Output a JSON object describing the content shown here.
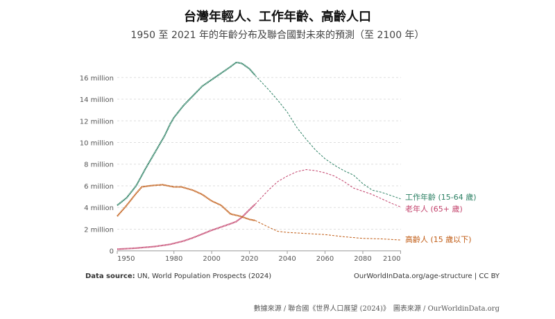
{
  "chart_data": {
    "type": "line",
    "title": "台灣年輕人、工作年齡、高齡人口",
    "subtitle": "1950 至 2021 年的年齡分布及聯合國對未來的預測（至 2100 年）",
    "xlim": [
      1950,
      2100
    ],
    "ylim": [
      0,
      17500000
    ],
    "x_ticks": [
      "1950",
      "1980",
      "2000",
      "2020",
      "2040",
      "2060",
      "2080",
      "2100"
    ],
    "y_ticks": [
      "0",
      "2 million",
      "4 million",
      "6 million",
      "8 million",
      "10 million",
      "12 million",
      "14 million",
      "16 million"
    ],
    "grid": true,
    "projection_from": 2023,
    "series": [
      {
        "name": "工作年齡 (15-64 歲)",
        "color": "#2a7f62",
        "x": [
          1950,
          1955,
          1960,
          1965,
          1970,
          1975,
          1978,
          1980,
          1985,
          1990,
          1995,
          2000,
          2005,
          2010,
          2013,
          2016,
          2020,
          2023,
          2030,
          2035,
          2040,
          2045,
          2050,
          2055,
          2060,
          2065,
          2070,
          2075,
          2080,
          2085,
          2090,
          2095,
          2100
        ],
        "y": [
          4.2,
          4.9,
          6.0,
          7.6,
          9.1,
          10.6,
          11.7,
          12.3,
          13.4,
          14.3,
          15.2,
          15.8,
          16.4,
          17.0,
          17.4,
          17.3,
          16.8,
          16.2,
          14.9,
          13.9,
          12.8,
          11.4,
          10.3,
          9.3,
          8.5,
          7.9,
          7.4,
          7.0,
          6.2,
          5.6,
          5.4,
          5.1,
          4.8
        ]
      },
      {
        "name": "老年人 (65+ 歲)",
        "color": "#c2406a",
        "x": [
          1950,
          1960,
          1970,
          1978,
          1985,
          1990,
          2000,
          2010,
          2013,
          2016,
          2020,
          2023,
          2030,
          2035,
          2040,
          2045,
          2050,
          2055,
          2060,
          2065,
          2070,
          2075,
          2080,
          2085,
          2090,
          2095,
          2100
        ],
        "y": [
          0.15,
          0.25,
          0.4,
          0.6,
          0.9,
          1.2,
          1.9,
          2.5,
          2.7,
          3.1,
          3.8,
          4.3,
          5.6,
          6.4,
          6.9,
          7.3,
          7.5,
          7.4,
          7.2,
          6.9,
          6.4,
          5.8,
          5.5,
          5.2,
          4.8,
          4.4,
          4.05
        ]
      },
      {
        "name": "高齡人 (15 歲以下)",
        "color": "#c05a12",
        "x": [
          1950,
          1955,
          1960,
          1963,
          1967,
          1970,
          1974,
          1977,
          1980,
          1984,
          1990,
          1995,
          2000,
          2005,
          2010,
          2015,
          2020,
          2023,
          2030,
          2035,
          2040,
          2050,
          2060,
          2070,
          2080,
          2090,
          2100
        ],
        "y": [
          3.2,
          4.2,
          5.3,
          5.9,
          6.0,
          6.05,
          6.1,
          6.0,
          5.9,
          5.9,
          5.6,
          5.2,
          4.6,
          4.2,
          3.4,
          3.2,
          2.9,
          2.8,
          2.2,
          1.8,
          1.7,
          1.6,
          1.5,
          1.3,
          1.15,
          1.1,
          1.0
        ]
      }
    ],
    "y_unit": "million"
  },
  "source": {
    "label": "Data source:",
    "text": " UN, World Population Prospects (2024)"
  },
  "url": "OurWorldInData.org/age-structure | CC BY",
  "footer": "數據來源 / 聯合國《世界人口展望 (2024)》　圖表來源 / OurWorldinData.org"
}
